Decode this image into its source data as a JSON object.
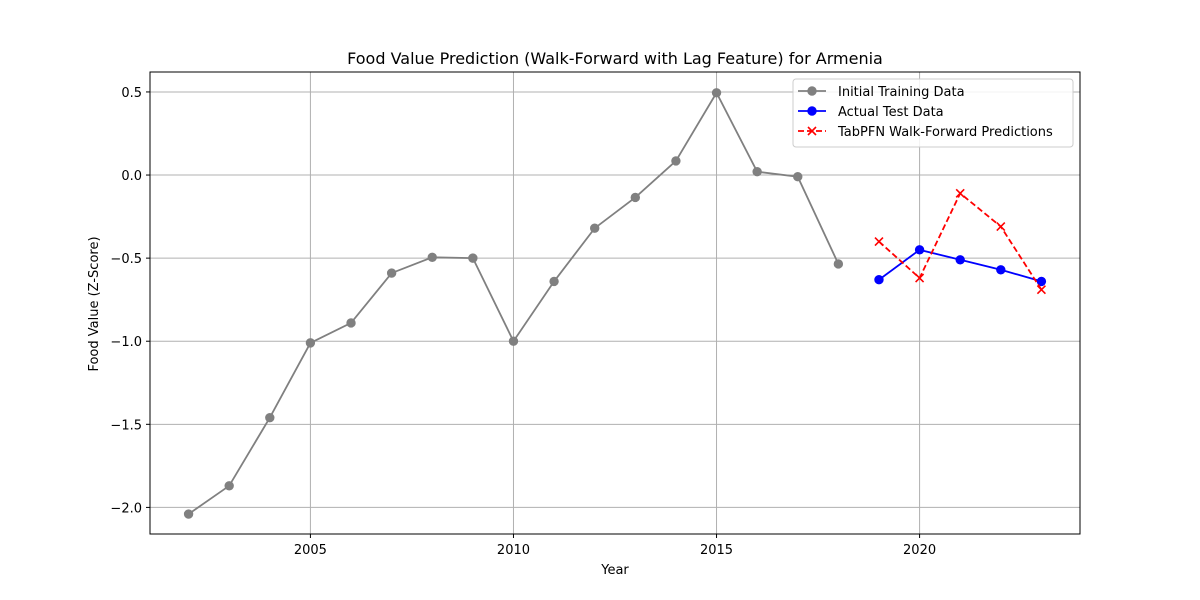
{
  "chart_data": {
    "type": "line",
    "title": "Food Value Prediction (Walk-Forward with Lag Feature) for Armenia",
    "xlabel": "Year",
    "ylabel": "Food Value (Z-Score)",
    "xlim": [
      2001.05,
      2023.95
    ],
    "ylim": [
      -2.16,
      0.62
    ],
    "xticks": [
      2005,
      2010,
      2015,
      2020
    ],
    "yticks": [
      0.5,
      0.0,
      -0.5,
      -1.0,
      -1.5,
      -2.0
    ],
    "ytick_labels": [
      "0.5",
      "0.0",
      "−0.5",
      "−1.0",
      "−1.5",
      "−2.0"
    ],
    "grid": true,
    "legend_position": "top-right",
    "series": [
      {
        "name": "Initial Training Data",
        "color": "#808080",
        "marker": "circle",
        "line": "solid",
        "x": [
          2002,
          2003,
          2004,
          2005,
          2006,
          2007,
          2008,
          2009,
          2010,
          2011,
          2012,
          2013,
          2014,
          2015,
          2016,
          2017,
          2018
        ],
        "y": [
          -2.04,
          -1.87,
          -1.46,
          -1.01,
          -0.89,
          -0.59,
          -0.495,
          -0.5,
          -1.0,
          -0.64,
          -0.32,
          -0.135,
          0.085,
          0.495,
          0.02,
          -0.01,
          -0.535
        ]
      },
      {
        "name": "Actual Test Data",
        "color": "#0000ff",
        "marker": "circle",
        "line": "solid",
        "x": [
          2019,
          2020,
          2021,
          2022,
          2023
        ],
        "y": [
          -0.63,
          -0.45,
          -0.51,
          -0.57,
          -0.64
        ]
      },
      {
        "name": "TabPFN Walk-Forward Predictions",
        "color": "#ff0000",
        "marker": "x",
        "line": "dashed",
        "x": [
          2019,
          2020,
          2021,
          2022,
          2023
        ],
        "y": [
          -0.4,
          -0.62,
          -0.11,
          -0.31,
          -0.69
        ]
      }
    ]
  }
}
